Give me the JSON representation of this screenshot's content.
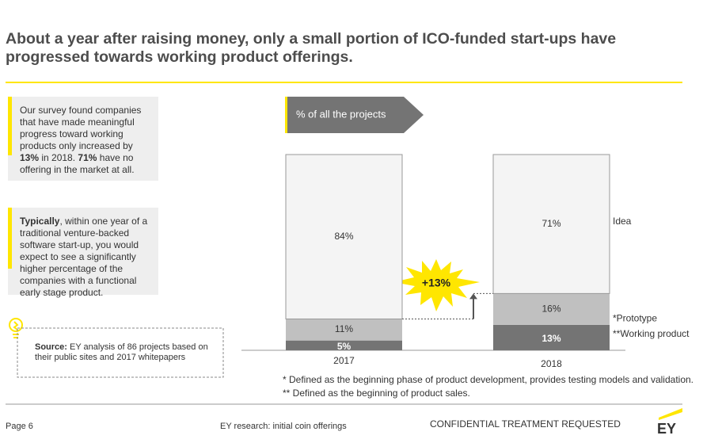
{
  "header": {
    "title": "About a year after raising money, only a small portion of ICO-funded start-ups have progressed towards working product offerings."
  },
  "callouts": [
    {
      "parts": [
        {
          "text": "Our survey found companies that have made meaningful progress toward working products only increased by ",
          "bold": false
        },
        {
          "text": "13%",
          "bold": true
        },
        {
          "text": " in 2018. ",
          "bold": false
        },
        {
          "text": "71%",
          "bold": true
        },
        {
          "text": " have no offering in the market at all.",
          "bold": false
        }
      ]
    },
    {
      "parts": [
        {
          "text": "Typically",
          "bold": true
        },
        {
          "text": ", within one year of a traditional venture-backed software start-up, you would expect to see a significantly higher percentage of the companies with a functional early stage product.",
          "bold": false
        }
      ]
    }
  ],
  "source": {
    "label": "Source:",
    "text": " EY analysis of 86 projects based on their public sites and 2017 whitepapers"
  },
  "chart_data": {
    "type": "stacked-bar",
    "label": "% of all the projects",
    "categories": [
      "2017",
      "2018"
    ],
    "series": [
      {
        "name": "**Working product",
        "color": "#747474",
        "text_color": "#ffffff",
        "values": [
          5,
          13
        ],
        "value_labels": [
          "5%",
          "13%"
        ]
      },
      {
        "name": "*Prototype",
        "color": "#c0c0c0",
        "text_color": "#333333",
        "values": [
          11,
          16
        ],
        "value_labels": [
          "11%",
          "16%"
        ]
      },
      {
        "name": "Idea",
        "color": "#f4f4f4",
        "text_color": "#333333",
        "values": [
          84,
          71
        ],
        "value_labels": [
          "84%",
          "71%"
        ]
      }
    ],
    "annotation": "+13%",
    "footnotes": [
      "* Defined as the beginning phase of product development, provides testing models and validation.",
      "** Defined as the beginning of product sales."
    ]
  },
  "footer": {
    "page": "Page 6",
    "center": "EY research: initial coin offerings",
    "confidential": "CONFIDENTIAL TREATMENT REQUESTED",
    "logo": "EY"
  }
}
